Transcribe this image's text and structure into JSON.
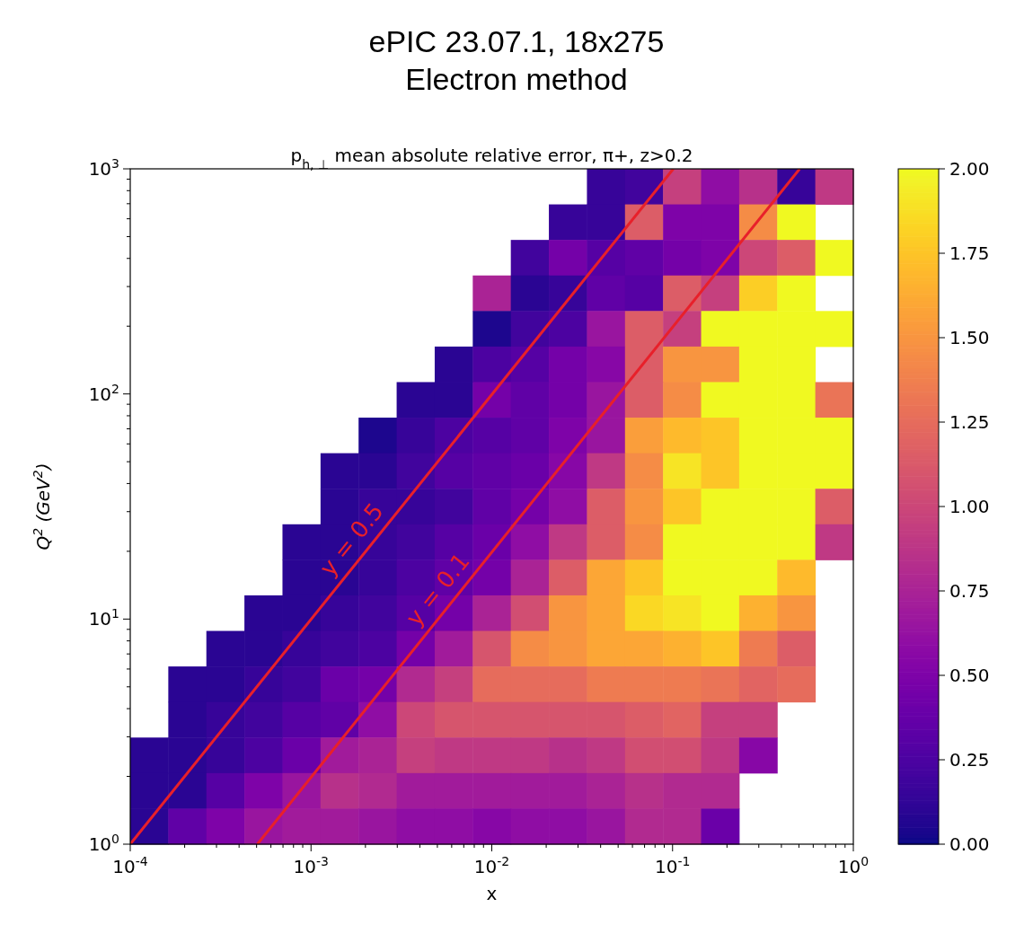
{
  "chart_data": {
    "type": "heatmap",
    "title": "ePIC 23.07.1, 18x275",
    "subtitle": "Electron method",
    "annotations": [
      "p$_{h, ⊥}$ mean absolute relative error, π+, z>0.2",
      {
        "text": "y = 0.5",
        "x": 0.00202,
        "y": 20
      },
      {
        "text": "y = 0.1",
        "x": 0.00606,
        "y": 12
      }
    ],
    "xlabel": "x",
    "ylabel": "Q$^{2}$ (GeV$^{2}$)",
    "log": "xy",
    "xlim": [
      0.0001,
      1
    ],
    "ylim": [
      1,
      1000
    ],
    "xticks": [
      {
        "value": 0.0001,
        "label": "10$^{-4}$"
      },
      {
        "value": 0.0002,
        "label": null
      },
      {
        "value": 0.0003,
        "label": null
      },
      {
        "value": 0.0004,
        "label": null
      },
      {
        "value": 0.0005,
        "label": null
      },
      {
        "value": 0.0006,
        "label": null
      },
      {
        "value": 0.0007,
        "label": null
      },
      {
        "value": 0.0008,
        "label": null
      },
      {
        "value": 0.0009,
        "label": null
      },
      {
        "value": 0.001,
        "label": "10$^{-3}$"
      },
      {
        "value": 0.002,
        "label": null
      },
      {
        "value": 0.003,
        "label": null
      },
      {
        "value": 0.004,
        "label": null
      },
      {
        "value": 0.005,
        "label": null
      },
      {
        "value": 0.006,
        "label": null
      },
      {
        "value": 0.007,
        "label": null
      },
      {
        "value": 0.008,
        "label": null
      },
      {
        "value": 0.009,
        "label": null
      },
      {
        "value": 0.01,
        "label": "10$^{-2}$"
      },
      {
        "value": 0.02,
        "label": null
      },
      {
        "value": 0.03,
        "label": null
      },
      {
        "value": 0.04,
        "label": null
      },
      {
        "value": 0.05,
        "label": null
      },
      {
        "value": 0.06,
        "label": null
      },
      {
        "value": 0.07,
        "label": null
      },
      {
        "value": 0.08,
        "label": null
      },
      {
        "value": 0.09,
        "label": null
      },
      {
        "value": 0.1,
        "label": "10$^{-1}$"
      },
      {
        "value": 0.2,
        "label": null
      },
      {
        "value": 0.3,
        "label": null
      },
      {
        "value": 0.4,
        "label": null
      },
      {
        "value": 0.5,
        "label": null
      },
      {
        "value": 0.6,
        "label": null
      },
      {
        "value": 0.7,
        "label": null
      },
      {
        "value": 0.8,
        "label": null
      },
      {
        "value": 0.9,
        "label": null
      },
      {
        "value": 1,
        "label": "10$^{0}$"
      }
    ],
    "yticks": [
      {
        "value": 1,
        "label": "10$^{0}$"
      },
      {
        "value": 2,
        "label": null
      },
      {
        "value": 3,
        "label": null
      },
      {
        "value": 4,
        "label": null
      },
      {
        "value": 5,
        "label": null
      },
      {
        "value": 6,
        "label": null
      },
      {
        "value": 7,
        "label": null
      },
      {
        "value": 8,
        "label": null
      },
      {
        "value": 9,
        "label": null
      },
      {
        "value": 10,
        "label": "10$^{1}$"
      },
      {
        "value": 20,
        "label": null
      },
      {
        "value": 30,
        "label": null
      },
      {
        "value": 40,
        "label": null
      },
      {
        "value": 50,
        "label": null
      },
      {
        "value": 60,
        "label": null
      },
      {
        "value": 70,
        "label": null
      },
      {
        "value": 80,
        "label": null
      },
      {
        "value": 90,
        "label": null
      },
      {
        "value": 100,
        "label": "10$^{2}$"
      },
      {
        "value": 200,
        "label": null
      },
      {
        "value": 300,
        "label": null
      },
      {
        "value": 400,
        "label": null
      },
      {
        "value": 500,
        "label": null
      },
      {
        "value": 600,
        "label": null
      },
      {
        "value": 700,
        "label": null
      },
      {
        "value": 800,
        "label": null
      },
      {
        "value": 900,
        "label": null
      },
      {
        "value": 1000,
        "label": "10$^{3}$"
      }
    ],
    "clim": [
      0,
      2
    ],
    "cticks": [
      {
        "value": 0,
        "label": "0.00"
      },
      {
        "value": 0.25,
        "label": "0.25"
      },
      {
        "value": 0.5,
        "label": "0.50"
      },
      {
        "value": 0.75,
        "label": "0.75"
      },
      {
        "value": 1,
        "label": "1.00"
      },
      {
        "value": 1.25,
        "label": "1.25"
      },
      {
        "value": 1.5,
        "label": "1.50"
      },
      {
        "value": 1.75,
        "label": "1.75"
      },
      {
        "value": 2,
        "label": "2.00"
      }
    ],
    "cells": [
      [
        null,
        null,
        null,
        null,
        null,
        null,
        null,
        null,
        null,
        null,
        null,
        null,
        0.15,
        0.2,
        0.95,
        0.6,
        0.85,
        0.15,
        0.9
      ],
      [
        null,
        null,
        null,
        null,
        null,
        null,
        null,
        null,
        null,
        null,
        null,
        0.15,
        0.15,
        1.15,
        0.5,
        0.5,
        1.45,
        2,
        null
      ],
      [
        null,
        null,
        null,
        null,
        null,
        null,
        null,
        null,
        null,
        null,
        0.2,
        0.45,
        0.3,
        0.35,
        0.45,
        0.5,
        1,
        1.15,
        2
      ],
      [
        null,
        null,
        null,
        null,
        null,
        null,
        null,
        null,
        null,
        0.75,
        0.1,
        0.15,
        0.35,
        0.3,
        1.15,
        0.95,
        1.8,
        2,
        null
      ],
      [
        null,
        null,
        null,
        null,
        null,
        null,
        null,
        null,
        null,
        0.05,
        0.2,
        0.25,
        0.65,
        1.15,
        0.95,
        2,
        2,
        2,
        2
      ],
      [
        null,
        null,
        null,
        null,
        null,
        null,
        null,
        null,
        0.1,
        0.25,
        0.3,
        0.45,
        0.55,
        1.15,
        1.5,
        1.5,
        2,
        2,
        null
      ],
      [
        null,
        null,
        null,
        null,
        null,
        null,
        null,
        0.1,
        0.1,
        0.45,
        0.35,
        0.45,
        0.65,
        1.15,
        1.45,
        2,
        2,
        2,
        1.3
      ],
      [
        null,
        null,
        null,
        null,
        null,
        null,
        0.05,
        0.15,
        0.25,
        0.3,
        0.35,
        0.5,
        0.65,
        1.55,
        1.7,
        1.75,
        2,
        2,
        2
      ],
      [
        null,
        null,
        null,
        null,
        null,
        0.1,
        0.1,
        0.2,
        0.3,
        0.35,
        0.4,
        0.55,
        0.9,
        1.45,
        1.9,
        1.75,
        2,
        2,
        2
      ],
      [
        null,
        null,
        null,
        null,
        null,
        0.1,
        0.15,
        0.15,
        0.2,
        0.35,
        0.45,
        0.6,
        1.15,
        1.5,
        1.75,
        2,
        2,
        2,
        1.15
      ],
      [
        null,
        null,
        null,
        null,
        0.1,
        0.1,
        0.15,
        0.2,
        0.3,
        0.4,
        0.6,
        0.9,
        1.15,
        1.45,
        2,
        2,
        2,
        2,
        0.9
      ],
      [
        null,
        null,
        null,
        null,
        0.1,
        0.1,
        0.15,
        0.25,
        0.35,
        0.45,
        0.75,
        1.15,
        1.6,
        1.75,
        2,
        2,
        2,
        1.7,
        null
      ],
      [
        null,
        null,
        null,
        0.1,
        0.1,
        0.15,
        0.2,
        0.3,
        0.45,
        0.75,
        1.05,
        1.5,
        1.6,
        1.85,
        1.9,
        2,
        1.65,
        1.5,
        null
      ],
      [
        null,
        null,
        0.1,
        0.1,
        0.15,
        0.2,
        0.25,
        0.45,
        0.7,
        1.1,
        1.45,
        1.5,
        1.6,
        1.6,
        1.65,
        1.75,
        1.35,
        1.15,
        null
      ],
      [
        null,
        0.1,
        0.1,
        0.15,
        0.2,
        0.4,
        0.45,
        0.8,
        0.95,
        1.25,
        1.25,
        1.25,
        1.35,
        1.35,
        1.35,
        1.3,
        1.2,
        1.25,
        null
      ],
      [
        null,
        0.1,
        0.15,
        0.2,
        0.3,
        0.35,
        0.6,
        1,
        1.1,
        1.1,
        1.1,
        1.1,
        1.1,
        1.15,
        1.2,
        0.95,
        0.95,
        null,
        null
      ],
      [
        0.1,
        0.1,
        0.15,
        0.25,
        0.4,
        0.7,
        0.75,
        0.95,
        0.9,
        0.9,
        0.9,
        0.85,
        0.9,
        1.05,
        1.05,
        0.9,
        0.55,
        null,
        null
      ],
      [
        0.1,
        0.1,
        0.3,
        0.5,
        0.65,
        0.85,
        0.8,
        0.7,
        0.7,
        0.7,
        0.7,
        0.7,
        0.75,
        0.85,
        0.8,
        0.8,
        null,
        null,
        null
      ],
      [
        0.1,
        0.35,
        0.5,
        0.65,
        0.7,
        0.7,
        0.65,
        0.6,
        0.6,
        0.55,
        0.6,
        0.6,
        0.65,
        0.8,
        0.8,
        0.4,
        null,
        null,
        null
      ]
    ],
    "series": [
      {
        "type": "line",
        "color": "#e8202a",
        "x": [
          0.0001,
          0.101
        ],
        "values": [
          1,
          1000
        ]
      },
      {
        "type": "line",
        "color": "#e8202a",
        "x": [
          0.000505,
          0.505
        ],
        "values": [
          1,
          1000
        ]
      }
    ]
  }
}
